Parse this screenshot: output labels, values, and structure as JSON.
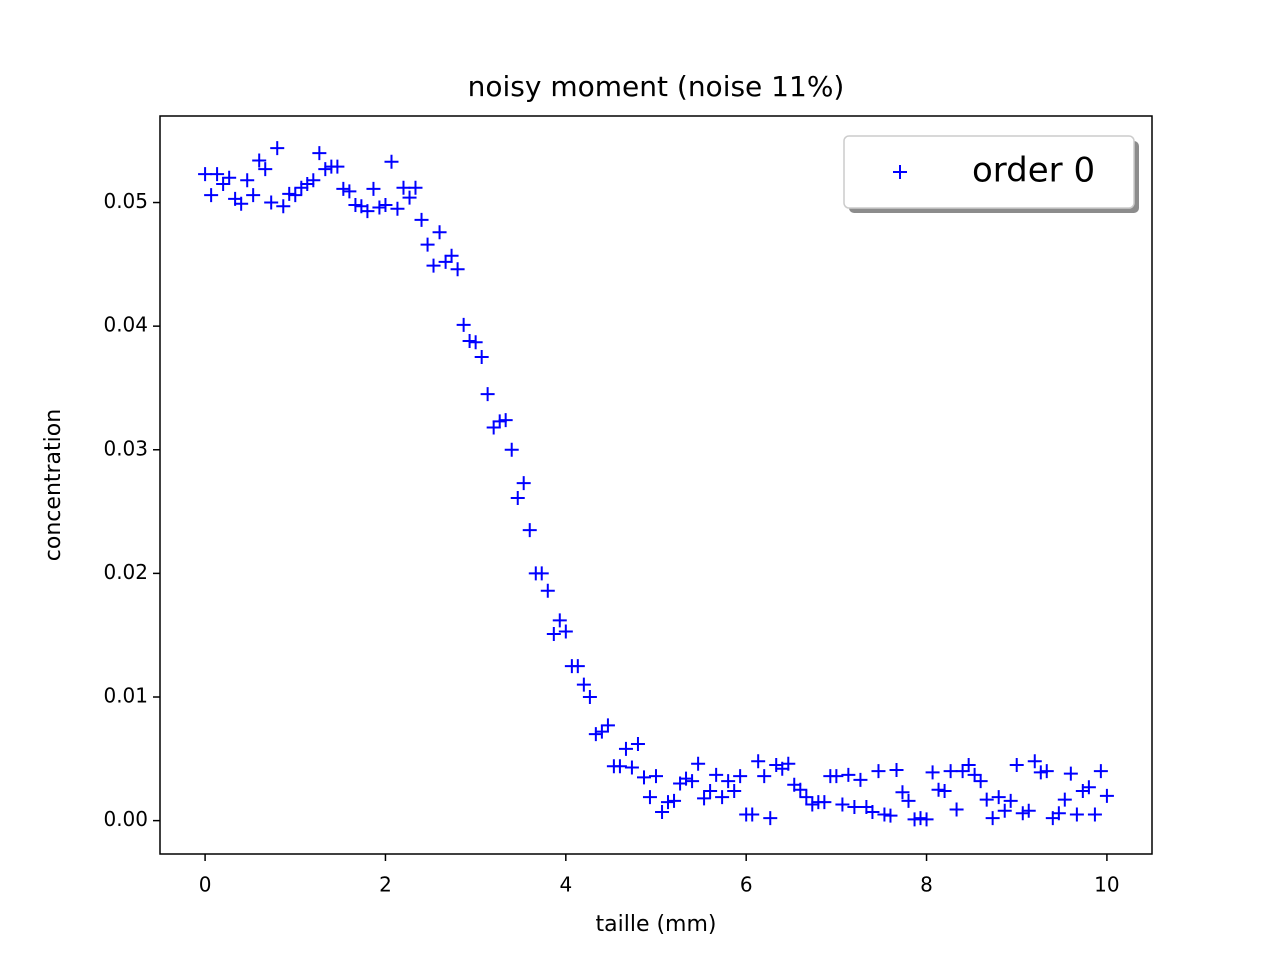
{
  "chart_data": {
    "type": "scatter",
    "title": "noisy moment (noise 11%)",
    "x_label": "taille (mm)",
    "y_label": "concentration",
    "xlim": [
      -0.5,
      10.5
    ],
    "ylim": [
      -0.0027,
      0.057
    ],
    "xticks": [
      0,
      2,
      4,
      6,
      8,
      10
    ],
    "yticks": [
      {
        "value": 0,
        "label": "0.00"
      },
      0.01,
      0.02,
      0.03,
      0.04,
      0.05
    ],
    "legend": "upper right",
    "series": [
      {
        "name": "order 0",
        "color": "#0000ff",
        "marker": "+",
        "x": [
          0,
          0.067,
          0.133,
          0.2,
          0.267,
          0.333,
          0.4,
          0.467,
          0.533,
          0.6,
          0.667,
          0.733,
          0.8,
          0.867,
          0.933,
          1,
          1.067,
          1.133,
          1.2,
          1.267,
          1.333,
          1.4,
          1.467,
          1.533,
          1.6,
          1.667,
          1.733,
          1.8,
          1.867,
          1.933,
          2,
          2.067,
          2.133,
          2.2,
          2.267,
          2.333,
          2.4,
          2.467,
          2.533,
          2.6,
          2.667,
          2.733,
          2.8,
          2.867,
          2.933,
          3,
          3.067,
          3.133,
          3.2,
          3.267,
          3.333,
          3.4,
          3.467,
          3.533,
          3.6,
          3.667,
          3.733,
          3.8,
          3.867,
          3.933,
          4,
          4.067,
          4.133,
          4.2,
          4.267,
          4.333,
          4.4,
          4.467,
          4.533,
          4.6,
          4.667,
          4.733,
          4.8,
          4.867,
          4.933,
          5,
          5.067,
          5.133,
          5.2,
          5.267,
          5.333,
          5.4,
          5.467,
          5.533,
          5.6,
          5.667,
          5.733,
          5.8,
          5.867,
          5.933,
          6,
          6.067,
          6.133,
          6.2,
          6.267,
          6.333,
          6.4,
          6.467,
          6.533,
          6.6,
          6.667,
          6.733,
          6.8,
          6.867,
          6.933,
          7,
          7.067,
          7.133,
          7.2,
          7.267,
          7.333,
          7.4,
          7.467,
          7.533,
          7.6,
          7.667,
          7.733,
          7.8,
          7.867,
          7.933,
          8,
          8.067,
          8.133,
          8.2,
          8.267,
          8.333,
          8.4,
          8.467,
          8.533,
          8.6,
          8.667,
          8.733,
          8.8,
          8.867,
          8.933,
          9,
          9.067,
          9.133,
          9.2,
          9.267,
          9.333,
          9.4,
          9.467,
          9.533,
          9.6,
          9.667,
          9.733,
          9.8,
          9.867,
          9.933,
          10
        ],
        "values": [
          0.0523,
          0.0506,
          0.0523,
          0.0515,
          0.052,
          0.0503,
          0.0499,
          0.0518,
          0.0506,
          0.0534,
          0.0527,
          0.05,
          0.0544,
          0.0497,
          0.0507,
          0.0506,
          0.0512,
          0.0515,
          0.0518,
          0.054,
          0.0527,
          0.0529,
          0.0529,
          0.0511,
          0.0509,
          0.0498,
          0.0497,
          0.0493,
          0.0511,
          0.0496,
          0.0498,
          0.0533,
          0.0495,
          0.0512,
          0.0504,
          0.0512,
          0.0486,
          0.0466,
          0.0449,
          0.0476,
          0.0452,
          0.0457,
          0.0446,
          0.0401,
          0.0388,
          0.0387,
          0.0375,
          0.0345,
          0.0318,
          0.0323,
          0.0324,
          0.03,
          0.0261,
          0.0273,
          0.0235,
          0.02,
          0.02,
          0.0186,
          0.0151,
          0.0162,
          0.0153,
          0.0125,
          0.0125,
          0.011,
          0.01,
          0.007,
          0.0072,
          0.0077,
          0.0044,
          0.0044,
          0.0058,
          0.0043,
          0.0062,
          0.0035,
          0.0019,
          0.0036,
          0.0007,
          0.0015,
          0.0016,
          0.003,
          0.0034,
          0.0032,
          0.0046,
          0.0018,
          0.0024,
          0.0037,
          0.0019,
          0.0032,
          0.0024,
          0.0036,
          0.0005,
          0.0005,
          0.0048,
          0.0036,
          0.0002,
          0.0045,
          0.0042,
          0.0046,
          0.0029,
          0.0025,
          0.0019,
          0.0013,
          0.0015,
          0.0015,
          0.0036,
          0.0036,
          0.0013,
          0.0037,
          0.0011,
          0.0033,
          0.0011,
          0.0007,
          0.004,
          0.0005,
          0.0004,
          0.0041,
          0.0023,
          0.0016,
          0.0001,
          0.0002,
          0.0001,
          0.0039,
          0.0025,
          0.0024,
          0.004,
          0.0009,
          0.004,
          0.0045,
          0.0037,
          0.0032,
          0.0017,
          0.0002,
          0.0019,
          0.0008,
          0.0016,
          0.0045,
          0.0006,
          0.0008,
          0.0048,
          0.0039,
          0.004,
          0.0002,
          0.0006,
          0.0017,
          0.0038,
          0.0005,
          0.0024,
          0.0027,
          0.0005,
          0.004,
          0.002
        ]
      }
    ]
  }
}
